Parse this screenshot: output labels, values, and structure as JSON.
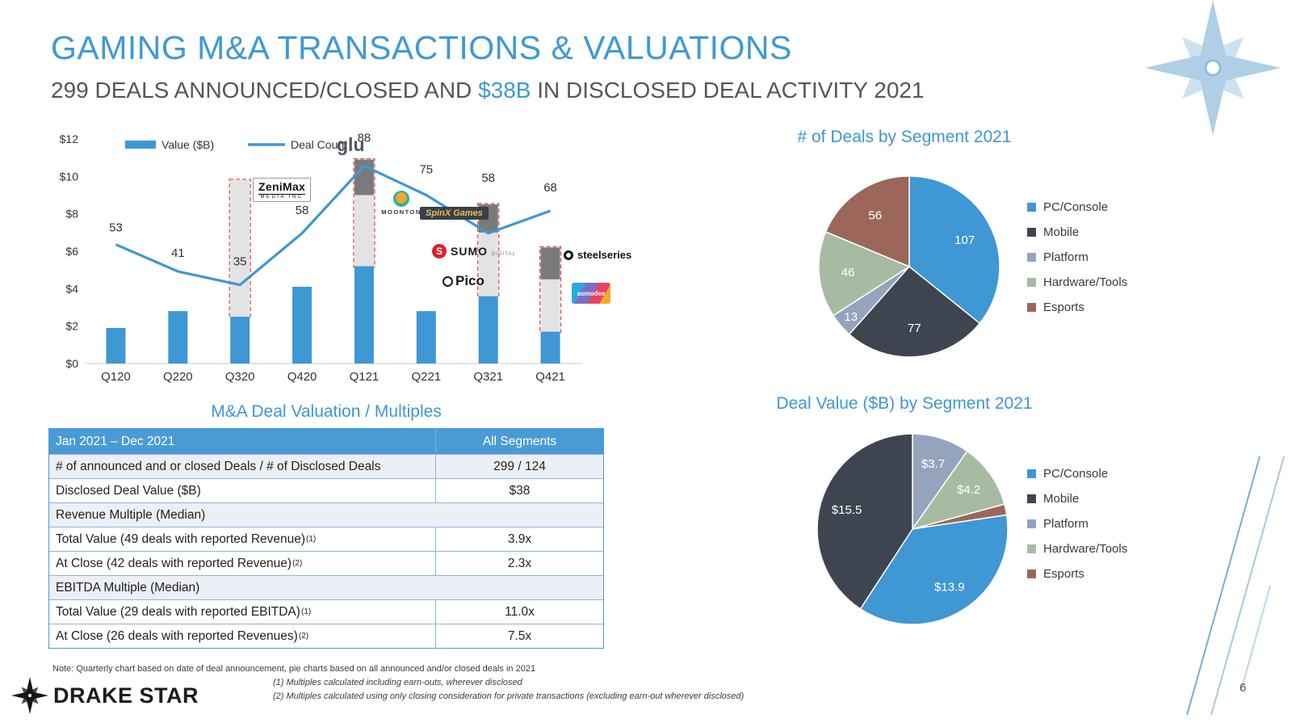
{
  "page": {
    "title": "GAMING M&A TRANSACTIONS & VALUATIONS",
    "subtitle_pre": "299 DEALS ANNOUNCED/CLOSED AND ",
    "subtitle_highlight": "$38B",
    "subtitle_post": " IN DISCLOSED DEAL ACTIVITY 2021",
    "page_number": "6",
    "brand_name": "DRAKE STAR"
  },
  "colors": {
    "accent_blue": "#3f9ad2",
    "bar_blue": "#3f97d4",
    "mobile_dark": "#3e4550",
    "platform_gray": "#95a4bd",
    "hardware_green": "#a7bba2",
    "esports_brown": "#9c665a",
    "pending_fill": "#e3e3e3",
    "pending_stroke": "#d9534f",
    "gray_segment": "#7a7a7a"
  },
  "chart_data": [
    {
      "id": "quarterly_deals",
      "type": "bar",
      "title": "",
      "categories": [
        "Q120",
        "Q220",
        "Q320",
        "Q420",
        "Q121",
        "Q221",
        "Q321",
        "Q421"
      ],
      "series": [
        {
          "name": "Value ($B)",
          "type": "bar",
          "values": [
            1.9,
            2.8,
            2.5,
            4.1,
            5.2,
            2.8,
            3.6,
            1.7
          ]
        },
        {
          "name": "Deal Count",
          "type": "line",
          "values": [
            53,
            41,
            35,
            58,
            88,
            75,
            58,
            68
          ]
        }
      ],
      "highlight_ranges": [
        null,
        null,
        [
          2.5,
          9.8
        ],
        null,
        [
          5.2,
          10.9
        ],
        null,
        [
          3.6,
          8.5
        ],
        [
          1.7,
          6.2
        ]
      ],
      "highlight_cap_ranges": [
        null,
        null,
        null,
        null,
        [
          9.0,
          10.9
        ],
        null,
        [
          7.0,
          8.5
        ],
        [
          4.5,
          6.2
        ]
      ],
      "y_ticks": [
        "$0",
        "$2",
        "$4",
        "$6",
        "$8",
        "$10",
        "$12"
      ],
      "ylim": [
        0,
        12
      ],
      "count_axis_max": 100,
      "legend": [
        "Value ($B)",
        "Deal Count"
      ],
      "grid": false,
      "legend_position": "top-left"
    },
    {
      "id": "deals_by_segment",
      "type": "pie",
      "title": "# of Deals by Segment 2021",
      "slices": [
        {
          "label": "PC/Console",
          "value": 107,
          "display": "107",
          "color": "#3f97d4"
        },
        {
          "label": "Mobile",
          "value": 77,
          "display": "77",
          "color": "#3e4550"
        },
        {
          "label": "Platform",
          "value": 13,
          "display": "13",
          "color": "#95a4bd"
        },
        {
          "label": "Hardware/Tools",
          "value": 46,
          "display": "46",
          "color": "#a7bba2"
        },
        {
          "label": "Esports",
          "value": 56,
          "display": "56",
          "color": "#9c665a"
        }
      ],
      "legend": [
        "PC/Console",
        "Mobile",
        "Platform",
        "Hardware/Tools",
        "Esports"
      ],
      "legend_position": "right"
    },
    {
      "id": "value_by_segment",
      "type": "pie",
      "title": "Deal Value ($B) by Segment 2021",
      "slices": [
        {
          "label": "Platform",
          "value": 3.7,
          "display": "$3.7",
          "color": "#95a4bd"
        },
        {
          "label": "Hardware/Tools",
          "value": 4.2,
          "display": "$4.2",
          "color": "#a7bba2"
        },
        {
          "label": "Esports",
          "value": 0.7,
          "display": "",
          "color": "#9c665a"
        },
        {
          "label": "PC/Console",
          "value": 13.9,
          "display": "$13.9",
          "color": "#3f97d4"
        },
        {
          "label": "Mobile",
          "value": 15.5,
          "display": "$15.5",
          "color": "#3e4550"
        }
      ],
      "legend": [
        "PC/Console",
        "Mobile",
        "Platform",
        "Hardware/Tools",
        "Esports"
      ],
      "legend_position": "right"
    }
  ],
  "bar_annotations": [
    {
      "id": "zenimax",
      "text": "ZeniMax",
      "sub": "MEDIA INC"
    },
    {
      "id": "glu",
      "text": "glu",
      "sub": ""
    },
    {
      "id": "moonton",
      "text": "MOONTON",
      "sub": ""
    },
    {
      "id": "spinx",
      "text": "SpinX Games",
      "sub": ""
    },
    {
      "id": "sumo",
      "text": "SUMO",
      "sub": "DIGITAL"
    },
    {
      "id": "pico",
      "text": "Pico",
      "sub": ""
    },
    {
      "id": "steelseries",
      "text": "steelseries",
      "sub": ""
    },
    {
      "id": "asmodee",
      "text": "asmodee",
      "sub": ""
    }
  ],
  "table": {
    "title": "M&A Deal Valuation / Multiples",
    "header_left": "Jan 2021 – Dec 2021",
    "header_right": "All Segments",
    "rows": [
      {
        "type": "data",
        "label": "# of announced and or closed Deals / # of Disclosed Deals",
        "sup": "",
        "value": "299 / 124",
        "shaded": true
      },
      {
        "type": "data",
        "label": "Disclosed Deal Value ($B)",
        "sup": "",
        "value": "$38",
        "shaded": false
      },
      {
        "type": "section",
        "label": "Revenue Multiple (Median)",
        "sup": "",
        "value": "",
        "shaded": true
      },
      {
        "type": "data",
        "label": "Total Value (49 deals with reported Revenue)",
        "sup": "(1)",
        "value": "3.9x",
        "shaded": false
      },
      {
        "type": "data",
        "label": "At Close (42 deals with reported Revenue)",
        "sup": "(2)",
        "value": "2.3x",
        "shaded": false
      },
      {
        "type": "section",
        "label": "EBITDA Multiple (Median)",
        "sup": "",
        "value": "",
        "shaded": true
      },
      {
        "type": "data",
        "label": "Total Value (29 deals with reported EBITDA)",
        "sup": "(1)",
        "value": "11.0x",
        "shaded": false
      },
      {
        "type": "data",
        "label": "At Close (26 deals with reported Revenues)",
        "sup": "(2)",
        "value": "7.5x",
        "shaded": false
      }
    ]
  },
  "notes": {
    "note": "Note: Quarterly chart based on date of deal announcement, pie charts based on all announced and/or closed deals in 2021",
    "footnote1": "(1) Multiples calculated including earn-outs, wherever disclosed",
    "footnote2": "(2) Multiples calculated using only closing consideration for private transactions (excluding earn-out wherever disclosed)"
  }
}
